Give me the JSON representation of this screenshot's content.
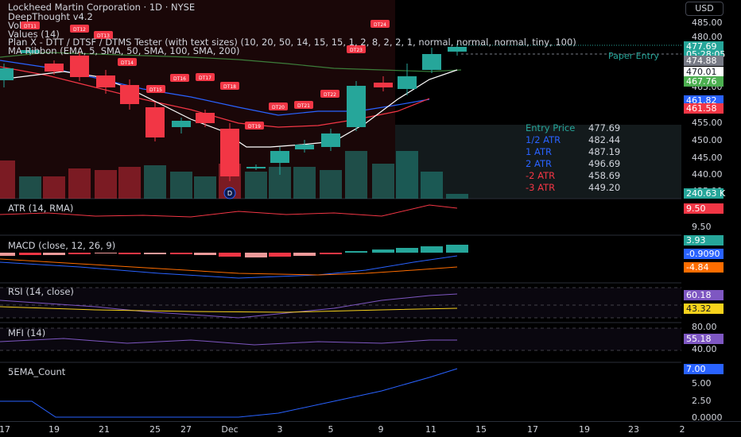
{
  "header": {
    "symbol_line": "Lockheed Martin Corporation · 1D · NYSE",
    "indicators": [
      "DeepThought v4.2",
      "Vol",
      "Values (14)",
      "Plan X - DTT / DTSF / DTMS Tester (with text sizes) (10, 20, 50, 14, 15, 15, 1, 2, 8, 2, 2, 1, normal, normal, normal, tiny, 100)",
      "MA Ribbon (EMA, 5, SMA, 50, SMA, 100, SMA, 200)"
    ]
  },
  "currency_button": "USD",
  "price_axis": {
    "ticks": [
      "485.00",
      "480.00",
      "465.00",
      "455.00",
      "450.00",
      "445.00",
      "440.00",
      "435.00"
    ],
    "tags": [
      {
        "text": "477.69",
        "color": "#26a69a"
      },
      {
        "text": "05:28:05",
        "color": "#26a69a"
      },
      {
        "text": "474.88",
        "color": "#787b86"
      },
      {
        "text": "470.01",
        "color": "#ffffff"
      },
      {
        "text": "467.76",
        "color": "#4caf50"
      },
      {
        "text": "461.82",
        "color": "#2962ff"
      },
      {
        "text": "461.58",
        "color": "#f23645"
      },
      {
        "text": "240.63 K",
        "color": "#26a69a"
      }
    ]
  },
  "paper_entry_label": "Paper Entry",
  "atr_table": [
    {
      "label": "Entry Price",
      "value": "477.69",
      "color": "#26a69a"
    },
    {
      "label": "1/2 ATR",
      "value": "482.44",
      "color": "#2962ff"
    },
    {
      "label": "1 ATR",
      "value": "487.19",
      "color": "#2962ff"
    },
    {
      "label": "2 ATR",
      "value": "496.69",
      "color": "#2962ff"
    },
    {
      "label": "-2 ATR",
      "value": "458.69",
      "color": "#f23645"
    },
    {
      "label": "-3 ATR",
      "value": "449.20",
      "color": "#f23645"
    }
  ],
  "dt_markers": [
    "DT11",
    "DT12",
    "DT13",
    "DT14",
    "DT15",
    "DT16",
    "DT17",
    "DT18",
    "DT19",
    "DT20",
    "DT21",
    "DT22",
    "DT23",
    "DT24"
  ],
  "event_marker": "D",
  "panes": {
    "atr": {
      "label": "ATR (14, RMA)",
      "ticks": [
        "9.50"
      ],
      "tag": "9.50",
      "tag_color": "#f23645"
    },
    "macd": {
      "label": "MACD (close, 12, 26, 9)",
      "tags": [
        {
          "text": "3.93",
          "color": "#26a69a"
        },
        {
          "text": "-0.9090",
          "color": "#2962ff"
        },
        {
          "text": "-4.84",
          "color": "#ff6d00"
        }
      ]
    },
    "rsi": {
      "label": "RSI (14, close)",
      "tags": [
        {
          "text": "60.18",
          "color": "#7e57c2"
        },
        {
          "text": "43.32",
          "color": "#f7d21c"
        }
      ]
    },
    "mfi": {
      "label": "MFI (14)",
      "ticks": [
        "80.00",
        "40.00"
      ],
      "tag": "55.18",
      "tag_color": "#7e57c2"
    },
    "ema": {
      "label": "5EMA_Count",
      "ticks": [
        "5.00",
        "2.50",
        "0.0000"
      ],
      "tag": "7.00",
      "tag_color": "#2962ff"
    }
  },
  "x_axis": [
    "17",
    "19",
    "21",
    "25",
    "27",
    "Dec",
    "3",
    "5",
    "9",
    "11",
    "15",
    "17",
    "19",
    "23",
    "2"
  ],
  "colors": {
    "up": "#26a69a",
    "down": "#f23645",
    "bg": "#000000"
  }
}
